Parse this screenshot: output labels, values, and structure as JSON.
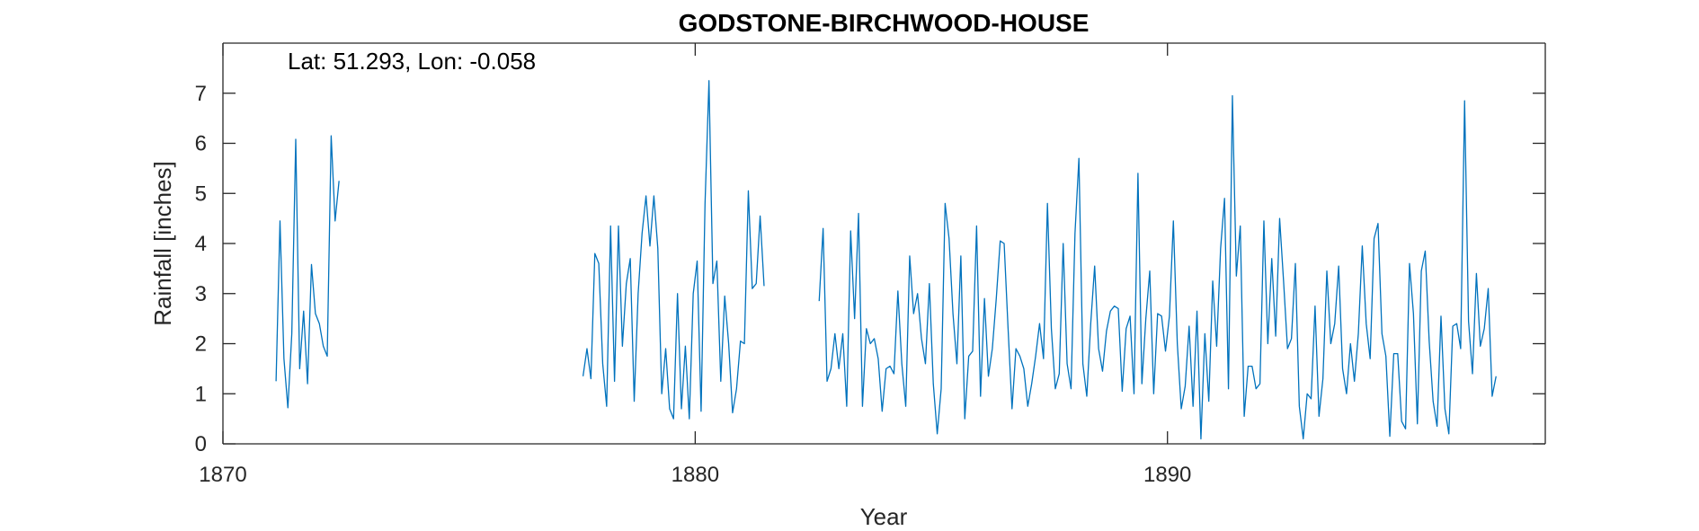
{
  "chart_data": {
    "type": "line",
    "title": "GODSTONE-BIRCHWOOD-HOUSE",
    "annotation": "Lat: 51.293, Lon: -0.058",
    "xlabel": "Year",
    "ylabel": "Rainfall [inches]",
    "xlim": [
      1870,
      1898
    ],
    "ylim": [
      0,
      8
    ],
    "xticks": [
      1870,
      1880,
      1890
    ],
    "yticks": [
      0,
      1,
      2,
      3,
      4,
      5,
      6,
      7
    ],
    "grid": false,
    "line_color": "#0072BD",
    "series": [
      {
        "segments": [
          {
            "start": 1871.125,
            "values": [
              1.25,
              4.45,
              1.7,
              0.72,
              2.2,
              6.08,
              1.5,
              2.65,
              1.2,
              3.58,
              2.6,
              2.4,
              1.95,
              1.75,
              6.15,
              4.45,
              5.25
            ]
          },
          {
            "start": 1877.625,
            "values": [
              1.35,
              1.9,
              1.3,
              3.8,
              3.6,
              1.6,
              0.75,
              4.35,
              1.25,
              4.35,
              1.95,
              3.2,
              3.7,
              0.85,
              3.0,
              4.2,
              4.95,
              3.95,
              4.95,
              3.9,
              1.0,
              1.9,
              0.7,
              0.5,
              3.0,
              0.7,
              1.95,
              0.5,
              3.0,
              3.65,
              0.65,
              4.8,
              7.25,
              3.2,
              3.65,
              1.25,
              2.95,
              2.0,
              0.62,
              1.1,
              2.05,
              2.0,
              5.05,
              3.1,
              3.2,
              4.55,
              3.15
            ]
          },
          {
            "start": 1882.625,
            "values": [
              2.85,
              4.3,
              1.25,
              1.5,
              2.2,
              1.5,
              2.2,
              0.75,
              4.25,
              2.5,
              4.6,
              0.75,
              2.3,
              2.0,
              2.1,
              1.7,
              0.65,
              1.5,
              1.55,
              1.4,
              3.05,
              1.6,
              0.75,
              3.75,
              2.6,
              3.0,
              2.1,
              1.6,
              3.2,
              1.2,
              0.2,
              1.1,
              4.8,
              4.1,
              2.6,
              1.6,
              3.75,
              0.5,
              1.75,
              1.85,
              4.35,
              0.95,
              2.9,
              1.35,
              1.9,
              2.9,
              4.05,
              4.0,
              2.3,
              0.7,
              1.9,
              1.75,
              1.5,
              0.75,
              1.2,
              1.75,
              2.4,
              1.7,
              4.8,
              2.3,
              1.1,
              1.4,
              4.0,
              1.6,
              1.1,
              4.2,
              5.7,
              1.6,
              0.95,
              2.4,
              3.55,
              1.9,
              1.45,
              2.25,
              2.65,
              2.75,
              2.7,
              1.05,
              2.3,
              2.55,
              1.0,
              5.4,
              1.2,
              2.5,
              3.45,
              1.0,
              2.6,
              2.55,
              1.85,
              2.55,
              4.45,
              2.0,
              0.7,
              1.15,
              2.35,
              0.75,
              2.65,
              0.1,
              2.2,
              0.85,
              3.25,
              1.95,
              3.9,
              4.9,
              1.1,
              6.95,
              3.35,
              4.35,
              0.55,
              1.55,
              1.55,
              1.1,
              1.2,
              4.45,
              2.0,
              3.7,
              2.15,
              4.5,
              3.25,
              1.9,
              2.1,
              3.6,
              0.75,
              0.1,
              1.0,
              0.9,
              2.75,
              0.55,
              1.3,
              3.45,
              2.0,
              2.4,
              3.55,
              1.5,
              1.0,
              2.0,
              1.25,
              2.2,
              3.95,
              2.4,
              1.7,
              4.1,
              4.4,
              2.2,
              1.75,
              0.15,
              1.8,
              1.8,
              0.45,
              0.3,
              3.6,
              2.6,
              0.4,
              3.45,
              3.85,
              2.05,
              0.85,
              0.35,
              2.55,
              0.7,
              0.2,
              2.35,
              2.4,
              1.9,
              6.85,
              2.45,
              1.4,
              3.4,
              1.95,
              2.3,
              3.1,
              0.95,
              1.35
            ]
          }
        ]
      }
    ]
  }
}
